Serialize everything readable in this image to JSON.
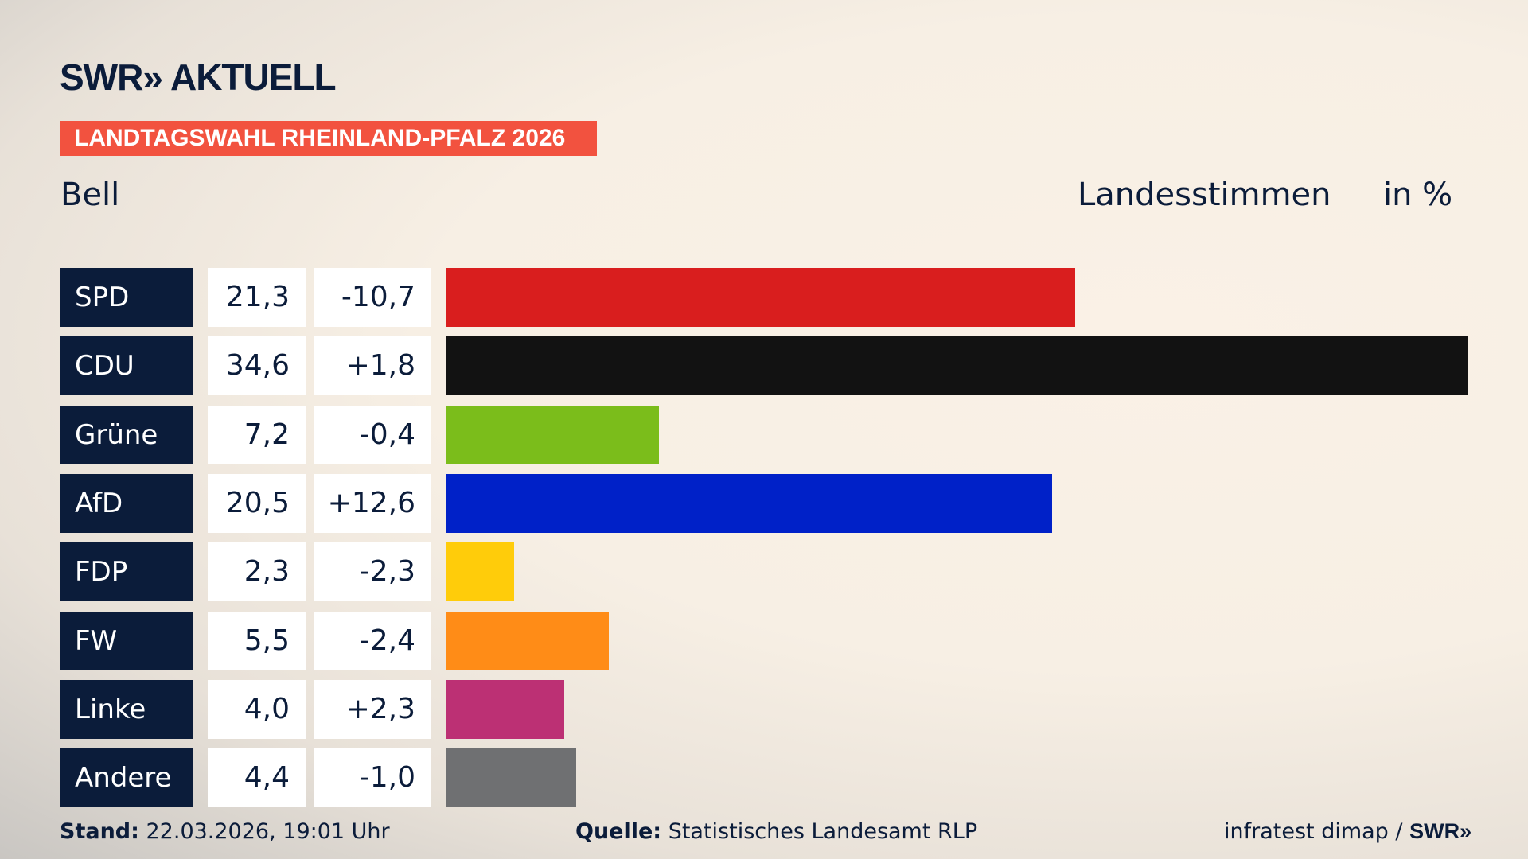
{
  "header": {
    "logo": "SWR» AKTUELL",
    "banner": "LANDTAGSWAHL RHEINLAND-PFALZ 2026",
    "location": "Bell",
    "measure": "Landesstimmen",
    "unit": "in %"
  },
  "chart_data": {
    "type": "bar",
    "orientation": "horizontal",
    "categories": [
      "SPD",
      "CDU",
      "Grüne",
      "AfD",
      "FDP",
      "FW",
      "Linke",
      "Andere"
    ],
    "values": [
      21.3,
      34.6,
      7.2,
      20.5,
      2.3,
      5.5,
      4.0,
      4.4
    ],
    "value_labels": [
      "21,3",
      "34,6",
      "7,2",
      "20,5",
      "2,3",
      "5,5",
      "4,0",
      "4,4"
    ],
    "diff_labels": [
      "-10,7",
      "+1,8",
      "-0,4",
      "+12,6",
      "-2,3",
      "-2,4",
      "+2,3",
      "-1,0"
    ],
    "colors": [
      "#d91e1e",
      "#121212",
      "#7bbd1b",
      "#0021c8",
      "#ffcc0a",
      "#ff8c17",
      "#bc3074",
      "#6f7072"
    ],
    "xlim": [
      0,
      34.6
    ],
    "grid": false
  },
  "footer": {
    "stand_label": "Stand:",
    "stand_value": " 22.03.2026, 19:01 Uhr",
    "source_label": "Quelle:",
    "source_value": " Statistisches Landesamt RLP",
    "credit": "infratest dimap / ",
    "credit_logo": "SWR»"
  }
}
